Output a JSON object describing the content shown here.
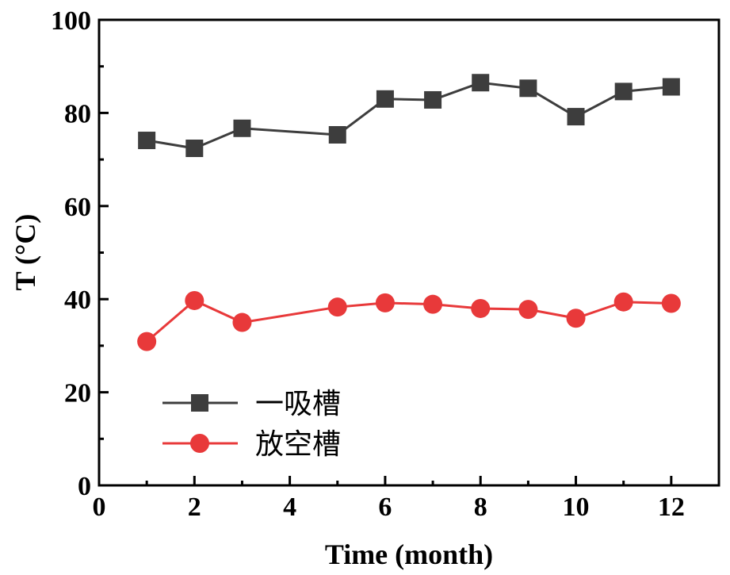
{
  "chart_data": {
    "type": "line",
    "xlabel": "Time (month)",
    "ylabel": "T (°C)",
    "xlim": [
      0,
      13
    ],
    "ylim": [
      0,
      100
    ],
    "xticks": [
      0,
      2,
      4,
      6,
      8,
      10,
      12
    ],
    "yticks": [
      0,
      20,
      40,
      60,
      80,
      100
    ],
    "grid": false,
    "legend_position": "bottom-left",
    "series": [
      {
        "name": "一吸槽",
        "color": "#3d3d3d",
        "marker": "square",
        "x": [
          1,
          2,
          3,
          5,
          6,
          7,
          8,
          9,
          10,
          11,
          12
        ],
        "y": [
          74.1,
          72.4,
          76.7,
          75.3,
          83.0,
          82.8,
          86.5,
          85.3,
          79.2,
          84.6,
          85.6
        ]
      },
      {
        "name": "放空槽",
        "color": "#e8393a",
        "marker": "circle",
        "x": [
          1,
          2,
          3,
          5,
          6,
          7,
          8,
          9,
          10,
          11,
          12
        ],
        "y": [
          30.9,
          39.7,
          35.0,
          38.3,
          39.2,
          38.9,
          38.0,
          37.8,
          35.9,
          39.4,
          39.1
        ]
      }
    ]
  }
}
